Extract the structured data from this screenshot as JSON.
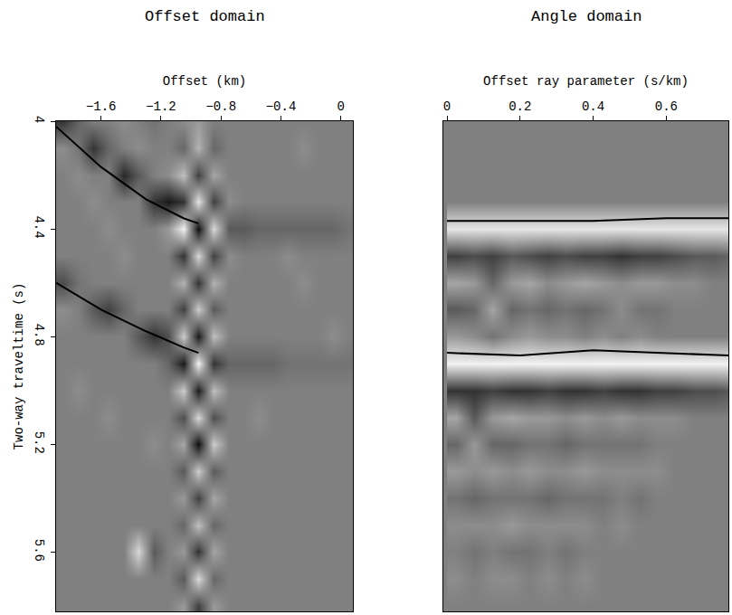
{
  "chart_data": [
    {
      "type": "heatmap",
      "title": "Offset domain",
      "x_label": "Offset (km)",
      "y_label": "Two-way traveltime (s)",
      "xlim": [
        -1.9,
        0.08
      ],
      "ylim": [
        5.82,
        4.0
      ],
      "xticks": [
        {
          "value": -1.6,
          "label": "−1.6"
        },
        {
          "value": -1.2,
          "label": "−1.2"
        },
        {
          "value": -0.8,
          "label": "−0.8"
        },
        {
          "value": -0.4,
          "label": "−0.4"
        },
        0
      ],
      "yticks": [
        4,
        4.4,
        4.8,
        5.2,
        5.6
      ],
      "zlim": [
        -1,
        1
      ],
      "x": [
        -1.85,
        -1.75,
        -1.65,
        -1.55,
        -1.45,
        -1.35,
        -1.25,
        -1.15,
        -1.05,
        -0.95,
        -0.85,
        -0.75,
        -0.65,
        -0.55,
        -0.45,
        -0.35,
        -0.25,
        -0.15,
        -0.05,
        0.05
      ],
      "y": [
        4.0,
        4.1,
        4.2,
        4.3,
        4.4,
        4.5,
        4.6,
        4.7,
        4.8,
        4.9,
        5.0,
        5.1,
        5.2,
        5.3,
        5.4,
        5.5,
        5.6,
        5.7,
        5.8
      ],
      "z": [
        [
          -0.6,
          -0.2,
          0,
          0,
          0.1,
          0,
          -0.1,
          0,
          0.1,
          0.2,
          0,
          0,
          0,
          0,
          0,
          0,
          0,
          0,
          0,
          0
        ],
        [
          0.1,
          -0.1,
          -0.6,
          -0.2,
          0,
          0.1,
          0,
          0,
          -0.2,
          0.4,
          -0.2,
          0,
          0,
          0,
          0,
          0,
          0.1,
          0,
          0,
          0
        ],
        [
          0,
          0.1,
          0,
          0,
          -0.7,
          -0.3,
          0,
          0.1,
          0.5,
          -0.5,
          0.3,
          0,
          0,
          0,
          0,
          0,
          0,
          0,
          0,
          0
        ],
        [
          0,
          0,
          0.1,
          0,
          0,
          0,
          -0.6,
          -0.8,
          -0.6,
          0.8,
          -0.5,
          0.1,
          0,
          0,
          0,
          0,
          0,
          0,
          0,
          0
        ],
        [
          0,
          0,
          0,
          0.1,
          0,
          0,
          0,
          0.2,
          0.9,
          -0.9,
          0.7,
          -0.3,
          -0.3,
          -0.2,
          -0.2,
          -0.2,
          -0.2,
          -0.2,
          -0.2,
          -0.1
        ],
        [
          0,
          0,
          0,
          0,
          0.1,
          0,
          0,
          0,
          -0.6,
          0.7,
          -0.5,
          0.1,
          0,
          0,
          0,
          0.1,
          0,
          0,
          0,
          0
        ],
        [
          -0.4,
          -0.1,
          0,
          0,
          0,
          0,
          0,
          0,
          0.4,
          -0.6,
          0.4,
          0,
          0,
          0,
          0,
          0,
          0.1,
          0,
          0,
          0
        ],
        [
          0.1,
          0,
          -0.3,
          -0.5,
          -0.2,
          0,
          0,
          0,
          -0.5,
          0.6,
          -0.3,
          0,
          0,
          0,
          0,
          0,
          0,
          0,
          0,
          0
        ],
        [
          0,
          0,
          0,
          0,
          0,
          -0.3,
          -0.6,
          -0.4,
          0.6,
          -0.8,
          0.5,
          0,
          0,
          0,
          0,
          0,
          0,
          0,
          0.1,
          0
        ],
        [
          0,
          0,
          0,
          0,
          0,
          0,
          0,
          -0.2,
          -0.8,
          0.9,
          -0.6,
          -0.2,
          -0.2,
          -0.2,
          -0.2,
          -0.1,
          -0.1,
          -0.1,
          -0.1,
          -0.1
        ],
        [
          0,
          0.1,
          0,
          0,
          0,
          0,
          0,
          0,
          0.6,
          -0.8,
          0.5,
          0,
          0,
          0,
          0,
          0,
          0,
          0,
          0,
          0
        ],
        [
          0,
          0,
          0,
          0.1,
          0,
          0,
          0,
          0,
          -0.4,
          0.7,
          -0.4,
          0,
          0,
          0.1,
          0,
          0,
          0,
          0,
          0,
          0
        ],
        [
          0,
          0,
          0,
          0,
          0,
          0,
          0.1,
          0,
          0.3,
          -0.9,
          0.6,
          0,
          0,
          0,
          0,
          0,
          0,
          0,
          0,
          0
        ],
        [
          0,
          0,
          0,
          0,
          0,
          0,
          0,
          0,
          -0.3,
          0.6,
          -0.3,
          0,
          0,
          0,
          0,
          0,
          0,
          0,
          0,
          0
        ],
        [
          0,
          0,
          0,
          0,
          0,
          0,
          0,
          0,
          0.2,
          -0.5,
          0.3,
          0,
          0,
          0,
          0,
          0,
          0,
          0,
          0,
          0
        ],
        [
          0,
          0,
          0,
          0,
          0,
          0,
          0,
          0,
          -0.2,
          0.5,
          -0.2,
          0,
          0,
          0,
          0,
          0,
          0,
          0,
          0,
          0
        ],
        [
          0,
          0,
          0,
          0,
          0,
          0.7,
          -0.3,
          0,
          0.2,
          -0.6,
          0.3,
          0,
          0,
          0,
          0,
          0,
          0,
          0,
          0,
          0
        ],
        [
          0,
          0,
          0,
          0,
          0,
          0,
          0,
          0,
          -0.3,
          0.7,
          -0.2,
          0,
          0,
          0,
          0,
          0,
          0,
          0,
          0,
          0
        ],
        [
          0,
          0,
          0,
          0,
          0,
          0,
          0,
          0,
          0.2,
          -0.5,
          0.2,
          0,
          0,
          0,
          0,
          0,
          0,
          0,
          0,
          0
        ]
      ],
      "events": [
        {
          "x": [
            -1.9,
            -1.6,
            -1.3,
            -1.05,
            -0.95
          ],
          "y": [
            4.02,
            4.17,
            4.29,
            4.36,
            4.38
          ],
          "color": "#000000"
        },
        {
          "x": [
            -1.9,
            -1.6,
            -1.3,
            -1.05,
            -0.95
          ],
          "y": [
            4.6,
            4.7,
            4.78,
            4.84,
            4.86
          ],
          "color": "#000000"
        }
      ]
    },
    {
      "type": "heatmap",
      "title": "Angle domain",
      "x_label": "Offset ray parameter (s/km)",
      "xlim": [
        -0.01,
        0.77
      ],
      "ylim": [
        5.82,
        4.0
      ],
      "xticks": [
        0,
        0.2,
        0.4,
        0.6
      ],
      "tick_labels": "x",
      "zlim": [
        -1,
        1
      ],
      "x": [
        0.025,
        0.075,
        0.125,
        0.175,
        0.225,
        0.275,
        0.325,
        0.375,
        0.425,
        0.475,
        0.525,
        0.575,
        0.625,
        0.675,
        0.725,
        0.775
      ],
      "y": [
        4.0,
        4.1,
        4.2,
        4.3,
        4.4,
        4.5,
        4.6,
        4.7,
        4.8,
        4.9,
        5.0,
        5.1,
        5.2,
        5.3,
        5.4,
        5.5,
        5.6,
        5.7,
        5.8
      ],
      "z": [
        [
          0,
          0,
          0,
          0,
          0,
          0,
          0,
          0,
          0,
          0,
          0,
          0,
          0,
          0,
          0,
          0
        ],
        [
          0,
          0,
          0,
          0,
          0,
          0,
          0,
          0,
          0,
          0,
          0,
          0,
          0,
          0,
          0,
          0
        ],
        [
          0,
          0,
          0,
          0,
          0,
          0,
          0,
          0,
          0,
          0,
          0,
          0,
          0,
          0,
          0,
          0
        ],
        [
          0,
          0,
          0,
          0,
          0,
          0,
          0,
          0,
          0,
          0,
          0,
          0,
          0,
          0,
          0,
          0
        ],
        [
          0.8,
          0.8,
          0.8,
          0.8,
          0.8,
          0.8,
          0.8,
          0.8,
          0.8,
          0.8,
          0.8,
          0.8,
          0.8,
          0.8,
          0.8,
          0.8
        ],
        [
          -0.5,
          -0.4,
          -0.5,
          -0.3,
          -0.4,
          -0.5,
          -0.4,
          -0.5,
          -0.5,
          -0.6,
          -0.5,
          -0.5,
          -0.4,
          -0.3,
          -0.3,
          -0.2
        ],
        [
          0.3,
          0.2,
          -0.2,
          0.2,
          0.3,
          0.1,
          0.2,
          0.3,
          0.2,
          0.1,
          0.2,
          0.2,
          0.1,
          0.1,
          0,
          0
        ],
        [
          -0.3,
          -0.2,
          0.3,
          -0.2,
          -0.1,
          -0.2,
          -0.1,
          -0.2,
          -0.1,
          0.1,
          -0.1,
          -0.1,
          0,
          0,
          0,
          0
        ],
        [
          0.2,
          0.1,
          -0.1,
          0.1,
          0.2,
          0.1,
          0.1,
          0,
          0.1,
          0,
          0.1,
          0,
          0,
          0,
          0,
          0
        ],
        [
          0.9,
          0.9,
          0.9,
          0.9,
          0.9,
          0.9,
          0.9,
          0.9,
          0.9,
          0.9,
          0.9,
          0.9,
          0.9,
          0.9,
          0.9,
          0.9
        ],
        [
          -0.6,
          -0.6,
          -0.5,
          -0.6,
          -0.6,
          -0.5,
          -0.6,
          -0.6,
          -0.5,
          -0.6,
          -0.6,
          -0.5,
          -0.5,
          -0.4,
          -0.4,
          -0.3
        ],
        [
          0.3,
          -0.3,
          0.2,
          0.3,
          0.2,
          0.2,
          0.1,
          0.2,
          0.1,
          0.2,
          0.1,
          0.1,
          0.1,
          0,
          0,
          0
        ],
        [
          -0.2,
          0.2,
          -0.2,
          -0.2,
          -0.1,
          -0.1,
          -0.2,
          -0.1,
          -0.1,
          -0.1,
          -0.1,
          0,
          0,
          0,
          0,
          0
        ],
        [
          0.2,
          0.1,
          0.2,
          0.1,
          0.2,
          0.1,
          0.1,
          0.2,
          0.1,
          0.1,
          0.1,
          0.1,
          0,
          0,
          0,
          0
        ],
        [
          -0.1,
          -0.2,
          -0.1,
          -0.1,
          -0.1,
          -0.2,
          -0.1,
          -0.1,
          -0.1,
          0,
          -0.1,
          0,
          0,
          0,
          0,
          0
        ],
        [
          0.1,
          0.1,
          0.1,
          0.2,
          0.1,
          0.1,
          0.1,
          0.1,
          0,
          0.1,
          0,
          0,
          0,
          0,
          0,
          0
        ],
        [
          0,
          -0.1,
          0,
          -0.1,
          -0.1,
          0,
          -0.1,
          0,
          0,
          0,
          0,
          0,
          0,
          0,
          0,
          0
        ],
        [
          0.1,
          0,
          0.1,
          0.1,
          0,
          0.1,
          0,
          0.1,
          0,
          0,
          0,
          0,
          0,
          0,
          0,
          0
        ],
        [
          0,
          0,
          0,
          0,
          0,
          0,
          0,
          0,
          0,
          0,
          0,
          0,
          0,
          0,
          0,
          0
        ]
      ],
      "events": [
        {
          "x": [
            0,
            0.2,
            0.4,
            0.6,
            0.77
          ],
          "y": [
            4.37,
            4.37,
            4.37,
            4.36,
            4.36
          ],
          "color": "#000000"
        },
        {
          "x": [
            0,
            0.2,
            0.4,
            0.6,
            0.77
          ],
          "y": [
            4.86,
            4.87,
            4.85,
            4.86,
            4.87
          ],
          "color": "#000000"
        }
      ]
    }
  ]
}
